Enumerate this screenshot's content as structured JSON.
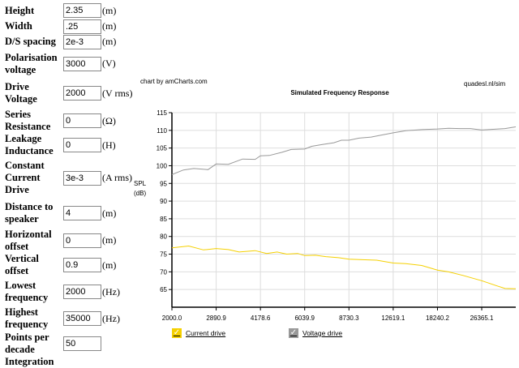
{
  "form": [
    {
      "label": "Height",
      "value": "2.35",
      "unit": "(m)",
      "h": 20
    },
    {
      "label": "Width",
      "value": ".25",
      "unit": "(m)",
      "h": 19
    },
    {
      "label": "D/S spacing",
      "value": "2e-3",
      "unit": "(m)",
      "h": 19
    },
    {
      "label": "Polarisation voltage",
      "value": "3000",
      "unit": "(V)",
      "h": 35
    },
    {
      "label": "Drive Voltage",
      "value": "2000",
      "unit": "(V rms)",
      "h": 38
    },
    {
      "label": "Series Resistance",
      "value": "0",
      "unit": "(Ω)",
      "h": 30
    },
    {
      "label": "Leakage Inductance",
      "value": "0",
      "unit": "(H)",
      "h": 30
    },
    {
      "label": "Constant Current Drive",
      "value": "3e-3",
      "unit": "(A rms)",
      "h": 51
    },
    {
      "label": "Distance to speaker",
      "value": "4",
      "unit": "(m)",
      "h": 36
    },
    {
      "label": "Horizontal offset",
      "value": "0",
      "unit": "(m)",
      "h": 31
    },
    {
      "label": "Vertical offset",
      "value": "0.9",
      "unit": "(m)",
      "h": 30
    },
    {
      "label": "Lowest frequency",
      "value": "2000",
      "unit": "(Hz)",
      "h": 36
    },
    {
      "label": "Highest frequency",
      "value": "35000",
      "unit": "(Hz)",
      "h": 30
    },
    {
      "label": "Points per decade",
      "value": "50",
      "unit": "",
      "h": 31
    },
    {
      "label": "Integration",
      "value": "",
      "unit": "",
      "h": 15
    }
  ],
  "chart_credit": "chart by amCharts.com",
  "chart_source": "quadesl.nl/sim",
  "chart_data": {
    "type": "line",
    "title": "Simulated Frequency Response",
    "ylabel": "SPL (dB)",
    "ylabel_lines": [
      "SPL",
      "(dB)"
    ],
    "xlabel": "",
    "xscale": "log",
    "xlim": [
      2000,
      35000
    ],
    "ylim": [
      60,
      115
    ],
    "yticks": [
      65,
      70,
      75,
      80,
      85,
      90,
      95,
      100,
      105,
      110,
      115
    ],
    "xticks": [
      2000,
      2890.9,
      4178.6,
      6039.9,
      8730.3,
      12619.1,
      18240.2,
      26365.1
    ],
    "xtick_labels": [
      "2000.0",
      "2890.9",
      "4178.6",
      "6039.9",
      "8730.3",
      "12619.1",
      "18240.2",
      "26365.1"
    ],
    "grid": true,
    "legend_placement": "bottom-left",
    "series": [
      {
        "name": "Current drive",
        "color": "#f5d000",
        "points": [
          [
            2000,
            76.8
          ],
          [
            2300,
            77.3
          ],
          [
            2600,
            76.2
          ],
          [
            2890,
            76.6
          ],
          [
            3200,
            76.3
          ],
          [
            3500,
            75.6
          ],
          [
            4000,
            76.0
          ],
          [
            4400,
            75.2
          ],
          [
            4800,
            75.6
          ],
          [
            5200,
            75.0
          ],
          [
            5700,
            75.2
          ],
          [
            6039,
            74.6
          ],
          [
            6600,
            74.7
          ],
          [
            7200,
            74.3
          ],
          [
            8000,
            74.0
          ],
          [
            8730,
            73.6
          ],
          [
            10000,
            73.4
          ],
          [
            11000,
            73.3
          ],
          [
            12619,
            72.5
          ],
          [
            14000,
            72.3
          ],
          [
            16000,
            71.8
          ],
          [
            18240,
            70.5
          ],
          [
            20000,
            70.0
          ],
          [
            22500,
            69.0
          ],
          [
            26365,
            67.5
          ],
          [
            30000,
            66.0
          ],
          [
            32000,
            65.3
          ],
          [
            35000,
            65.2
          ]
        ]
      },
      {
        "name": "Voltage drive",
        "color": "#999999",
        "points": [
          [
            2000,
            97.5
          ],
          [
            2200,
            98.8
          ],
          [
            2400,
            99.2
          ],
          [
            2700,
            98.9
          ],
          [
            2890,
            100.5
          ],
          [
            3200,
            100.4
          ],
          [
            3600,
            101.9
          ],
          [
            4000,
            101.8
          ],
          [
            4178,
            102.8
          ],
          [
            4500,
            102.9
          ],
          [
            5000,
            103.8
          ],
          [
            5400,
            104.6
          ],
          [
            6039,
            104.7
          ],
          [
            6400,
            105.5
          ],
          [
            7000,
            106
          ],
          [
            7700,
            106.5
          ],
          [
            8200,
            107.2
          ],
          [
            8730,
            107.2
          ],
          [
            9500,
            107.8
          ],
          [
            10500,
            108.1
          ],
          [
            11500,
            108.7
          ],
          [
            12619,
            109.3
          ],
          [
            14000,
            109.9
          ],
          [
            16000,
            110.2
          ],
          [
            18240,
            110.4
          ],
          [
            20000,
            110.6
          ],
          [
            22000,
            110.5
          ],
          [
            24000,
            110.5
          ],
          [
            26365,
            110.1
          ],
          [
            29000,
            110.3
          ],
          [
            32000,
            110.5
          ],
          [
            35000,
            111
          ]
        ]
      }
    ]
  }
}
